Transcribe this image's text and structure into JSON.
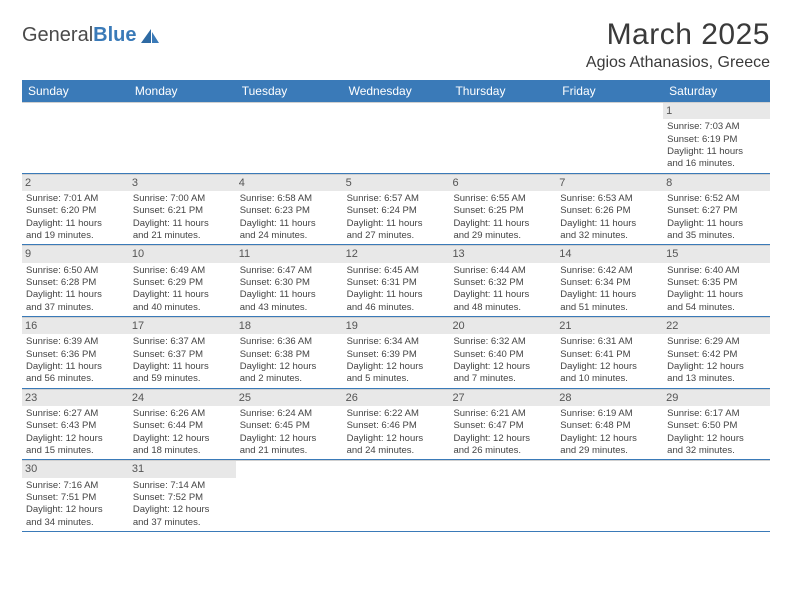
{
  "logo": {
    "text1": "General",
    "text2": "Blue"
  },
  "header": {
    "title": "March 2025",
    "location": "Agios Athanasios, Greece"
  },
  "colors": {
    "header_bg": "#3a7ab8",
    "header_text": "#ffffff",
    "daynum_bg": "#e8e8e8",
    "border": "#3a7ab8"
  },
  "dayNames": [
    "Sunday",
    "Monday",
    "Tuesday",
    "Wednesday",
    "Thursday",
    "Friday",
    "Saturday"
  ],
  "weeks": [
    [
      null,
      null,
      null,
      null,
      null,
      null,
      {
        "n": "1",
        "sr": "Sunrise: 7:03 AM",
        "ss": "Sunset: 6:19 PM",
        "d1": "Daylight: 11 hours",
        "d2": "and 16 minutes."
      }
    ],
    [
      {
        "n": "2",
        "sr": "Sunrise: 7:01 AM",
        "ss": "Sunset: 6:20 PM",
        "d1": "Daylight: 11 hours",
        "d2": "and 19 minutes."
      },
      {
        "n": "3",
        "sr": "Sunrise: 7:00 AM",
        "ss": "Sunset: 6:21 PM",
        "d1": "Daylight: 11 hours",
        "d2": "and 21 minutes."
      },
      {
        "n": "4",
        "sr": "Sunrise: 6:58 AM",
        "ss": "Sunset: 6:23 PM",
        "d1": "Daylight: 11 hours",
        "d2": "and 24 minutes."
      },
      {
        "n": "5",
        "sr": "Sunrise: 6:57 AM",
        "ss": "Sunset: 6:24 PM",
        "d1": "Daylight: 11 hours",
        "d2": "and 27 minutes."
      },
      {
        "n": "6",
        "sr": "Sunrise: 6:55 AM",
        "ss": "Sunset: 6:25 PM",
        "d1": "Daylight: 11 hours",
        "d2": "and 29 minutes."
      },
      {
        "n": "7",
        "sr": "Sunrise: 6:53 AM",
        "ss": "Sunset: 6:26 PM",
        "d1": "Daylight: 11 hours",
        "d2": "and 32 minutes."
      },
      {
        "n": "8",
        "sr": "Sunrise: 6:52 AM",
        "ss": "Sunset: 6:27 PM",
        "d1": "Daylight: 11 hours",
        "d2": "and 35 minutes."
      }
    ],
    [
      {
        "n": "9",
        "sr": "Sunrise: 6:50 AM",
        "ss": "Sunset: 6:28 PM",
        "d1": "Daylight: 11 hours",
        "d2": "and 37 minutes."
      },
      {
        "n": "10",
        "sr": "Sunrise: 6:49 AM",
        "ss": "Sunset: 6:29 PM",
        "d1": "Daylight: 11 hours",
        "d2": "and 40 minutes."
      },
      {
        "n": "11",
        "sr": "Sunrise: 6:47 AM",
        "ss": "Sunset: 6:30 PM",
        "d1": "Daylight: 11 hours",
        "d2": "and 43 minutes."
      },
      {
        "n": "12",
        "sr": "Sunrise: 6:45 AM",
        "ss": "Sunset: 6:31 PM",
        "d1": "Daylight: 11 hours",
        "d2": "and 46 minutes."
      },
      {
        "n": "13",
        "sr": "Sunrise: 6:44 AM",
        "ss": "Sunset: 6:32 PM",
        "d1": "Daylight: 11 hours",
        "d2": "and 48 minutes."
      },
      {
        "n": "14",
        "sr": "Sunrise: 6:42 AM",
        "ss": "Sunset: 6:34 PM",
        "d1": "Daylight: 11 hours",
        "d2": "and 51 minutes."
      },
      {
        "n": "15",
        "sr": "Sunrise: 6:40 AM",
        "ss": "Sunset: 6:35 PM",
        "d1": "Daylight: 11 hours",
        "d2": "and 54 minutes."
      }
    ],
    [
      {
        "n": "16",
        "sr": "Sunrise: 6:39 AM",
        "ss": "Sunset: 6:36 PM",
        "d1": "Daylight: 11 hours",
        "d2": "and 56 minutes."
      },
      {
        "n": "17",
        "sr": "Sunrise: 6:37 AM",
        "ss": "Sunset: 6:37 PM",
        "d1": "Daylight: 11 hours",
        "d2": "and 59 minutes."
      },
      {
        "n": "18",
        "sr": "Sunrise: 6:36 AM",
        "ss": "Sunset: 6:38 PM",
        "d1": "Daylight: 12 hours",
        "d2": "and 2 minutes."
      },
      {
        "n": "19",
        "sr": "Sunrise: 6:34 AM",
        "ss": "Sunset: 6:39 PM",
        "d1": "Daylight: 12 hours",
        "d2": "and 5 minutes."
      },
      {
        "n": "20",
        "sr": "Sunrise: 6:32 AM",
        "ss": "Sunset: 6:40 PM",
        "d1": "Daylight: 12 hours",
        "d2": "and 7 minutes."
      },
      {
        "n": "21",
        "sr": "Sunrise: 6:31 AM",
        "ss": "Sunset: 6:41 PM",
        "d1": "Daylight: 12 hours",
        "d2": "and 10 minutes."
      },
      {
        "n": "22",
        "sr": "Sunrise: 6:29 AM",
        "ss": "Sunset: 6:42 PM",
        "d1": "Daylight: 12 hours",
        "d2": "and 13 minutes."
      }
    ],
    [
      {
        "n": "23",
        "sr": "Sunrise: 6:27 AM",
        "ss": "Sunset: 6:43 PM",
        "d1": "Daylight: 12 hours",
        "d2": "and 15 minutes."
      },
      {
        "n": "24",
        "sr": "Sunrise: 6:26 AM",
        "ss": "Sunset: 6:44 PM",
        "d1": "Daylight: 12 hours",
        "d2": "and 18 minutes."
      },
      {
        "n": "25",
        "sr": "Sunrise: 6:24 AM",
        "ss": "Sunset: 6:45 PM",
        "d1": "Daylight: 12 hours",
        "d2": "and 21 minutes."
      },
      {
        "n": "26",
        "sr": "Sunrise: 6:22 AM",
        "ss": "Sunset: 6:46 PM",
        "d1": "Daylight: 12 hours",
        "d2": "and 24 minutes."
      },
      {
        "n": "27",
        "sr": "Sunrise: 6:21 AM",
        "ss": "Sunset: 6:47 PM",
        "d1": "Daylight: 12 hours",
        "d2": "and 26 minutes."
      },
      {
        "n": "28",
        "sr": "Sunrise: 6:19 AM",
        "ss": "Sunset: 6:48 PM",
        "d1": "Daylight: 12 hours",
        "d2": "and 29 minutes."
      },
      {
        "n": "29",
        "sr": "Sunrise: 6:17 AM",
        "ss": "Sunset: 6:50 PM",
        "d1": "Daylight: 12 hours",
        "d2": "and 32 minutes."
      }
    ],
    [
      {
        "n": "30",
        "sr": "Sunrise: 7:16 AM",
        "ss": "Sunset: 7:51 PM",
        "d1": "Daylight: 12 hours",
        "d2": "and 34 minutes."
      },
      {
        "n": "31",
        "sr": "Sunrise: 7:14 AM",
        "ss": "Sunset: 7:52 PM",
        "d1": "Daylight: 12 hours",
        "d2": "and 37 minutes."
      },
      null,
      null,
      null,
      null,
      null
    ]
  ]
}
